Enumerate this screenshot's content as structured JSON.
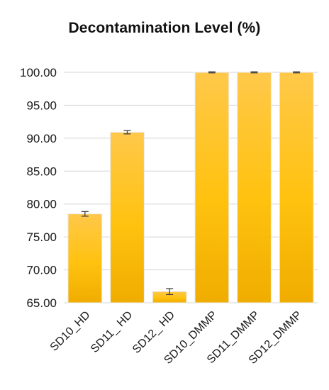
{
  "chart_data": {
    "type": "bar",
    "title": "Decontamination Level (%)",
    "xlabel": "",
    "ylabel": "",
    "categories": [
      "SD10_HD",
      "SD11_ HD",
      "SD12_ HD",
      "SD10_DMMP",
      "SD11_DMMP",
      "SD12_DMMP"
    ],
    "values": [
      78.5,
      90.9,
      66.7,
      100.0,
      100.0,
      100.0
    ],
    "errors": [
      0.35,
      0.25,
      0.45,
      0.08,
      0.08,
      0.08
    ],
    "ylim": [
      65.0,
      100.0
    ],
    "yticks": [
      "65.00",
      "70.00",
      "75.00",
      "80.00",
      "85.00",
      "90.00",
      "95.00",
      "100.00"
    ],
    "ytick_values": [
      65,
      70,
      75,
      80,
      85,
      90,
      95,
      100
    ],
    "grid": true,
    "legend": "none",
    "colors": {
      "bar_top": "#ffc84a",
      "bar_mid": "#ffc20f",
      "bar_bottom": "#f0ad00",
      "bar_edge": "#e9e9e9",
      "gridline": "#d4d4d4",
      "error_bar": "#404040"
    }
  }
}
